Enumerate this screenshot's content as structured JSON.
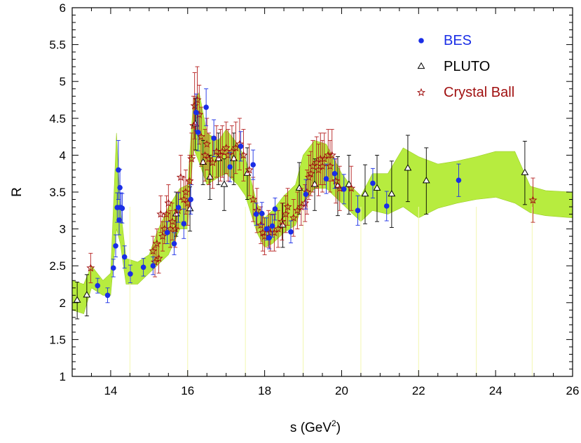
{
  "chart_data": {
    "type": "scatter",
    "xlabel": "s    (GeV",
    "xlabel_sup": "2",
    "xlabel_end": ")",
    "ylabel": "R",
    "xlim": [
      13,
      26
    ],
    "ylim": [
      1,
      6
    ],
    "xticks": [
      "14",
      "16",
      "18",
      "20",
      "22",
      "24",
      "26"
    ],
    "yticks": [
      "1",
      "1.5",
      "2",
      "2.5",
      "3",
      "3.5",
      "4",
      "4.5",
      "5",
      "5.5",
      "6"
    ],
    "grid": false,
    "legend_position": "top-right",
    "colors": {
      "band": "#b7ec3f",
      "bes": "#1a2ee6",
      "pluto": "#000000",
      "crystal_ball": "#a01010",
      "pluto_err": "#000000",
      "cb_err": "#b52020"
    },
    "band": {
      "x": [
        13.0,
        13.3,
        13.5,
        13.8,
        14.0,
        14.15,
        14.25,
        14.4,
        14.7,
        15.0,
        15.2,
        15.5,
        15.8,
        16.0,
        16.15,
        16.3,
        16.5,
        16.8,
        17.0,
        17.3,
        17.5,
        17.8,
        18.0,
        18.2,
        18.5,
        18.8,
        19.0,
        19.3,
        19.6,
        20.0,
        20.3,
        20.5,
        20.8,
        21.2,
        21.6,
        22.0,
        22.5,
        23.0,
        23.5,
        24.0,
        24.5,
        24.9,
        25.3,
        26.0
      ],
      "upper": [
        2.3,
        2.25,
        2.5,
        2.3,
        2.4,
        4.3,
        3.3,
        2.6,
        2.55,
        2.65,
        2.95,
        3.3,
        3.55,
        3.6,
        4.75,
        4.85,
        4.3,
        4.2,
        4.35,
        4.15,
        3.95,
        3.35,
        3.15,
        3.25,
        3.45,
        3.6,
        4.0,
        4.2,
        4.15,
        3.75,
        3.55,
        3.45,
        3.75,
        3.75,
        4.1,
        3.98,
        3.88,
        3.92,
        3.98,
        4.05,
        4.05,
        3.58,
        3.52,
        3.5
      ],
      "lower": [
        1.9,
        1.85,
        2.2,
        2.1,
        2.1,
        3.0,
        2.8,
        2.25,
        2.25,
        2.4,
        2.5,
        2.65,
        3.0,
        3.0,
        4.1,
        3.9,
        3.6,
        3.7,
        3.75,
        3.6,
        3.45,
        2.95,
        2.75,
        2.8,
        2.95,
        3.05,
        3.35,
        3.55,
        3.55,
        3.35,
        3.2,
        3.1,
        3.25,
        3.2,
        3.3,
        3.15,
        3.28,
        3.35,
        3.4,
        3.43,
        3.35,
        3.22,
        3.18,
        3.15
      ]
    },
    "series": [
      {
        "name": "BES",
        "marker": "circle",
        "points": [
          {
            "x": 13.66,
            "y": 2.23,
            "e": 0.1
          },
          {
            "x": 13.92,
            "y": 2.1,
            "e": 0.1
          },
          {
            "x": 14.07,
            "y": 2.47,
            "e": 0.12
          },
          {
            "x": 14.13,
            "y": 2.77,
            "e": 0.15
          },
          {
            "x": 14.17,
            "y": 3.29,
            "e": 0.2
          },
          {
            "x": 14.2,
            "y": 3.8,
            "e": 0.4
          },
          {
            "x": 14.22,
            "y": 3.12,
            "e": 0.2
          },
          {
            "x": 14.24,
            "y": 3.56,
            "e": 0.25
          },
          {
            "x": 14.27,
            "y": 3.29,
            "e": 0.2
          },
          {
            "x": 14.3,
            "y": 3.28,
            "e": 0.2
          },
          {
            "x": 14.36,
            "y": 2.62,
            "e": 0.15
          },
          {
            "x": 14.51,
            "y": 2.39,
            "e": 0.12
          },
          {
            "x": 14.85,
            "y": 2.48,
            "e": 0.12
          },
          {
            "x": 15.1,
            "y": 2.5,
            "e": 0.12
          },
          {
            "x": 15.47,
            "y": 2.95,
            "e": 0.15
          },
          {
            "x": 15.65,
            "y": 2.8,
            "e": 0.15
          },
          {
            "x": 15.76,
            "y": 3.29,
            "e": 0.2
          },
          {
            "x": 15.9,
            "y": 3.07,
            "e": 0.2
          },
          {
            "x": 16.08,
            "y": 3.4,
            "e": 0.2
          },
          {
            "x": 16.22,
            "y": 4.58,
            "e": 0.25
          },
          {
            "x": 16.27,
            "y": 4.31,
            "e": 0.25
          },
          {
            "x": 16.48,
            "y": 4.65,
            "e": 0.25
          },
          {
            "x": 16.68,
            "y": 4.23,
            "e": 0.25
          },
          {
            "x": 17.1,
            "y": 3.84,
            "e": 0.2
          },
          {
            "x": 17.38,
            "y": 4.12,
            "e": 0.2
          },
          {
            "x": 17.7,
            "y": 3.87,
            "e": 0.2
          },
          {
            "x": 17.78,
            "y": 3.2,
            "e": 0.15
          },
          {
            "x": 17.93,
            "y": 3.21,
            "e": 0.15
          },
          {
            "x": 18.05,
            "y": 3.0,
            "e": 0.15
          },
          {
            "x": 18.12,
            "y": 2.88,
            "e": 0.15
          },
          {
            "x": 18.2,
            "y": 3.04,
            "e": 0.15
          },
          {
            "x": 18.27,
            "y": 3.27,
            "e": 0.15
          },
          {
            "x": 18.68,
            "y": 2.96,
            "e": 0.15
          },
          {
            "x": 19.07,
            "y": 3.47,
            "e": 0.2
          },
          {
            "x": 19.6,
            "y": 3.68,
            "e": 0.2
          },
          {
            "x": 19.82,
            "y": 3.75,
            "e": 0.2
          },
          {
            "x": 20.06,
            "y": 3.54,
            "e": 0.2
          },
          {
            "x": 20.42,
            "y": 3.25,
            "e": 0.2
          },
          {
            "x": 20.81,
            "y": 3.62,
            "e": 0.2
          },
          {
            "x": 21.17,
            "y": 3.31,
            "e": 0.2
          },
          {
            "x": 23.04,
            "y": 3.66,
            "e": 0.22
          }
        ]
      },
      {
        "name": "PLUTO",
        "marker": "open-triangle",
        "points": [
          {
            "x": 13.13,
            "y": 2.03,
            "e": 0.25
          },
          {
            "x": 13.38,
            "y": 2.1,
            "e": 0.28
          },
          {
            "x": 15.7,
            "y": 3.2,
            "e": 0.3
          },
          {
            "x": 16.06,
            "y": 3.27,
            "e": 0.3
          },
          {
            "x": 16.2,
            "y": 4.42,
            "e": 0.35
          },
          {
            "x": 16.4,
            "y": 3.9,
            "e": 0.3
          },
          {
            "x": 16.58,
            "y": 3.7,
            "e": 0.3
          },
          {
            "x": 16.8,
            "y": 3.95,
            "e": 0.35
          },
          {
            "x": 16.95,
            "y": 3.6,
            "e": 0.35
          },
          {
            "x": 17.2,
            "y": 3.95,
            "e": 0.35
          },
          {
            "x": 17.55,
            "y": 3.75,
            "e": 0.35
          },
          {
            "x": 18.47,
            "y": 3.05,
            "e": 0.3
          },
          {
            "x": 18.9,
            "y": 3.55,
            "e": 0.35
          },
          {
            "x": 19.3,
            "y": 3.6,
            "e": 0.35
          },
          {
            "x": 19.9,
            "y": 3.58,
            "e": 0.4
          },
          {
            "x": 20.19,
            "y": 3.6,
            "e": 0.4
          },
          {
            "x": 20.61,
            "y": 3.47,
            "e": 0.4
          },
          {
            "x": 20.92,
            "y": 3.55,
            "e": 0.45
          },
          {
            "x": 21.3,
            "y": 3.47,
            "e": 0.45
          },
          {
            "x": 21.72,
            "y": 3.82,
            "e": 0.45
          },
          {
            "x": 22.2,
            "y": 3.65,
            "e": 0.45
          },
          {
            "x": 24.76,
            "y": 3.76,
            "e": 0.43
          }
        ]
      },
      {
        "name": "Crystal Ball",
        "marker": "open-star",
        "points": [
          {
            "x": 13.48,
            "y": 2.47,
            "e": 0.2
          },
          {
            "x": 15.1,
            "y": 2.7,
            "e": 0.2
          },
          {
            "x": 15.15,
            "y": 2.55,
            "e": 0.2
          },
          {
            "x": 15.2,
            "y": 2.8,
            "e": 0.2
          },
          {
            "x": 15.25,
            "y": 2.6,
            "e": 0.2
          },
          {
            "x": 15.3,
            "y": 3.2,
            "e": 0.25
          },
          {
            "x": 15.35,
            "y": 2.9,
            "e": 0.2
          },
          {
            "x": 15.4,
            "y": 3.0,
            "e": 0.2
          },
          {
            "x": 15.45,
            "y": 3.2,
            "e": 0.25
          },
          {
            "x": 15.5,
            "y": 3.35,
            "e": 0.25
          },
          {
            "x": 15.55,
            "y": 3.0,
            "e": 0.25
          },
          {
            "x": 15.6,
            "y": 3.1,
            "e": 0.25
          },
          {
            "x": 15.68,
            "y": 3.0,
            "e": 0.25
          },
          {
            "x": 15.75,
            "y": 3.25,
            "e": 0.25
          },
          {
            "x": 15.82,
            "y": 3.7,
            "e": 0.3
          },
          {
            "x": 15.9,
            "y": 3.4,
            "e": 0.3
          },
          {
            "x": 15.95,
            "y": 3.5,
            "e": 0.3
          },
          {
            "x": 16.0,
            "y": 3.35,
            "e": 0.3
          },
          {
            "x": 16.05,
            "y": 3.65,
            "e": 0.35
          },
          {
            "x": 16.1,
            "y": 3.95,
            "e": 0.35
          },
          {
            "x": 16.15,
            "y": 4.4,
            "e": 0.4
          },
          {
            "x": 16.18,
            "y": 4.67,
            "e": 0.45
          },
          {
            "x": 16.25,
            "y": 4.75,
            "e": 0.45
          },
          {
            "x": 16.3,
            "y": 4.55,
            "e": 0.4
          },
          {
            "x": 16.35,
            "y": 4.25,
            "e": 0.4
          },
          {
            "x": 16.45,
            "y": 4.0,
            "e": 0.35
          },
          {
            "x": 16.5,
            "y": 4.15,
            "e": 0.35
          },
          {
            "x": 16.55,
            "y": 3.95,
            "e": 0.35
          },
          {
            "x": 16.65,
            "y": 3.9,
            "e": 0.35
          },
          {
            "x": 16.75,
            "y": 4.05,
            "e": 0.35
          },
          {
            "x": 16.85,
            "y": 4.0,
            "e": 0.35
          },
          {
            "x": 16.9,
            "y": 4.05,
            "e": 0.35
          },
          {
            "x": 17.0,
            "y": 4.1,
            "e": 0.35
          },
          {
            "x": 17.05,
            "y": 4.0,
            "e": 0.35
          },
          {
            "x": 17.15,
            "y": 4.05,
            "e": 0.35
          },
          {
            "x": 17.25,
            "y": 4.1,
            "e": 0.35
          },
          {
            "x": 17.35,
            "y": 4.15,
            "e": 0.35
          },
          {
            "x": 17.45,
            "y": 4.0,
            "e": 0.35
          },
          {
            "x": 17.6,
            "y": 3.8,
            "e": 0.35
          },
          {
            "x": 17.7,
            "y": 3.4,
            "e": 0.3
          },
          {
            "x": 17.8,
            "y": 3.25,
            "e": 0.3
          },
          {
            "x": 17.9,
            "y": 3.05,
            "e": 0.25
          },
          {
            "x": 17.95,
            "y": 2.95,
            "e": 0.25
          },
          {
            "x": 18.0,
            "y": 2.9,
            "e": 0.25
          },
          {
            "x": 18.1,
            "y": 3.0,
            "e": 0.25
          },
          {
            "x": 18.15,
            "y": 2.95,
            "e": 0.25
          },
          {
            "x": 18.25,
            "y": 2.95,
            "e": 0.25
          },
          {
            "x": 18.35,
            "y": 3.0,
            "e": 0.25
          },
          {
            "x": 18.45,
            "y": 3.1,
            "e": 0.25
          },
          {
            "x": 18.55,
            "y": 3.2,
            "e": 0.25
          },
          {
            "x": 18.6,
            "y": 3.3,
            "e": 0.25
          },
          {
            "x": 18.75,
            "y": 3.15,
            "e": 0.25
          },
          {
            "x": 18.85,
            "y": 3.25,
            "e": 0.25
          },
          {
            "x": 18.95,
            "y": 3.3,
            "e": 0.25
          },
          {
            "x": 19.05,
            "y": 3.35,
            "e": 0.25
          },
          {
            "x": 19.1,
            "y": 3.5,
            "e": 0.3
          },
          {
            "x": 19.15,
            "y": 3.7,
            "e": 0.3
          },
          {
            "x": 19.2,
            "y": 3.75,
            "e": 0.3
          },
          {
            "x": 19.25,
            "y": 3.85,
            "e": 0.35
          },
          {
            "x": 19.35,
            "y": 3.9,
            "e": 0.35
          },
          {
            "x": 19.4,
            "y": 3.8,
            "e": 0.35
          },
          {
            "x": 19.45,
            "y": 3.95,
            "e": 0.35
          },
          {
            "x": 19.5,
            "y": 3.85,
            "e": 0.35
          },
          {
            "x": 19.55,
            "y": 3.95,
            "e": 0.35
          },
          {
            "x": 19.65,
            "y": 4.0,
            "e": 0.35
          },
          {
            "x": 19.7,
            "y": 3.85,
            "e": 0.35
          },
          {
            "x": 19.75,
            "y": 4.0,
            "e": 0.35
          },
          {
            "x": 19.85,
            "y": 3.65,
            "e": 0.3
          },
          {
            "x": 19.95,
            "y": 3.55,
            "e": 0.3
          },
          {
            "x": 20.25,
            "y": 3.55,
            "e": 0.3
          },
          {
            "x": 24.97,
            "y": 3.39,
            "e": 0.3
          }
        ]
      }
    ]
  },
  "legend": [
    {
      "label": "BES",
      "color": "#1a2ee6",
      "marker": "circle"
    },
    {
      "label": "PLUTO",
      "color": "#000000",
      "marker": "open-triangle"
    },
    {
      "label": "Crystal Ball",
      "color": "#a01010",
      "marker": "open-star"
    }
  ]
}
